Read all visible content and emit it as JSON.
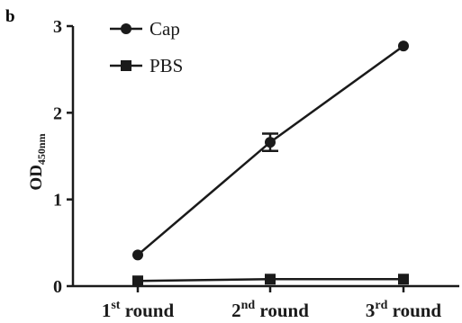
{
  "panel_label": "b",
  "chart_data": {
    "type": "line",
    "categories": [
      {
        "base": "1",
        "sup": "st",
        "rest": "round"
      },
      {
        "base": "2",
        "sup": "nd",
        "rest": "round"
      },
      {
        "base": "3",
        "sup": "rd",
        "rest": "round"
      }
    ],
    "ylabel": {
      "main": "OD",
      "sub": "450nm"
    },
    "ylim": [
      0,
      3
    ],
    "yticks": [
      "0",
      "1",
      "2",
      "3"
    ],
    "series": [
      {
        "name": "Cap",
        "marker": "circle",
        "values": [
          0.36,
          1.66,
          2.77
        ],
        "errors": [
          0,
          0.1,
          0
        ]
      },
      {
        "name": "PBS",
        "marker": "square",
        "values": [
          0.06,
          0.08,
          0.08
        ],
        "errors": [
          0,
          0,
          0
        ]
      }
    ],
    "legend": "top-left",
    "grid": false,
    "color": "#1a1a1a"
  }
}
